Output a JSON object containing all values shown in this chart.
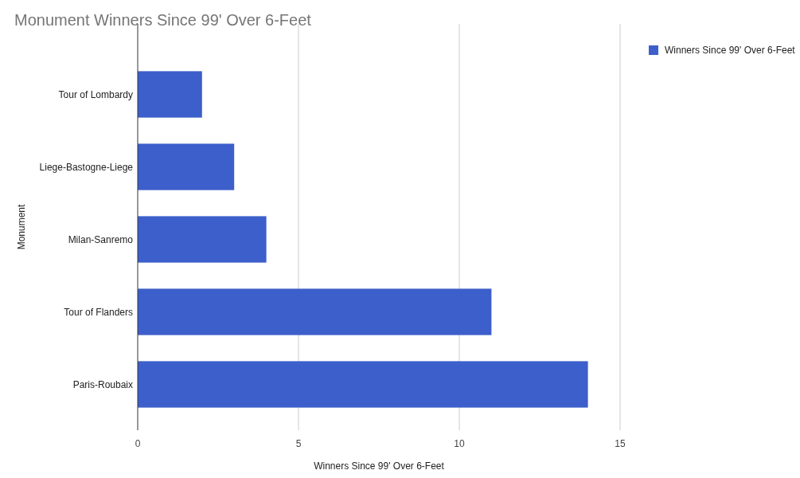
{
  "chart_data": {
    "type": "bar",
    "orientation": "horizontal",
    "title": "Monument Winners Since 99' Over 6-Feet",
    "xlabel": "Winners Since 99' Over 6-Feet",
    "ylabel": "Monument",
    "categories": [
      "Tour of Lombardy",
      "Liege-Bastogne-Liege",
      "Milan-Sanremo",
      "Tour of Flanders",
      "Paris-Roubaix"
    ],
    "series": [
      {
        "name": "Winners Since 99' Over 6-Feet",
        "color": "#3d5fcb",
        "values": [
          2,
          3,
          4,
          11,
          14
        ]
      }
    ],
    "xlim": [
      0,
      15
    ],
    "xticks": [
      0,
      5,
      10,
      15
    ],
    "grid": "x",
    "legend": "top right"
  }
}
